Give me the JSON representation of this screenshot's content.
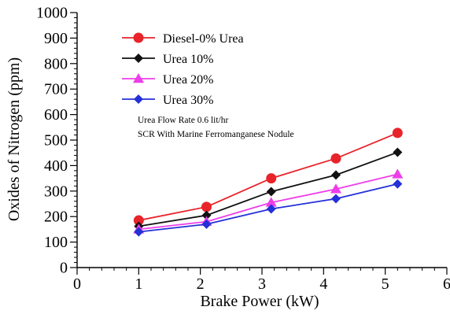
{
  "chart_data": {
    "type": "line",
    "xlabel": "Brake Power (kW)",
    "ylabel": "Oxides of Nitrogen (ppm)",
    "xlim": [
      0,
      6
    ],
    "ylim": [
      0,
      1000
    ],
    "x_ticks": [
      0,
      1,
      2,
      3,
      4,
      5,
      6
    ],
    "y_ticks": [
      0,
      100,
      200,
      300,
      400,
      500,
      600,
      700,
      800,
      900,
      1000
    ],
    "grid": false,
    "legend_position": "top-left",
    "series": [
      {
        "name": "Diesel-0% Urea",
        "color": "#e8232a",
        "marker": "circle",
        "x": [
          1.0,
          2.1,
          3.15,
          4.2,
          5.2
        ],
        "y": [
          185,
          238,
          350,
          428,
          528
        ]
      },
      {
        "name": "Urea 10%",
        "color": "#111111",
        "marker": "diamond",
        "x": [
          1.0,
          2.1,
          3.15,
          4.2,
          5.2
        ],
        "y": [
          162,
          205,
          298,
          363,
          452
        ]
      },
      {
        "name": "Urea 20%",
        "color": "#ee3ee8",
        "marker": "triangle",
        "x": [
          1.0,
          2.1,
          3.15,
          4.2,
          5.2
        ],
        "y": [
          150,
          180,
          255,
          308,
          366
        ]
      },
      {
        "name": "Urea 30%",
        "color": "#2430d8",
        "marker": "diamond",
        "x": [
          1.0,
          2.1,
          3.15,
          4.2,
          5.2
        ],
        "y": [
          140,
          170,
          230,
          270,
          328
        ]
      }
    ],
    "annotations": [
      "Urea Flow Rate 0.6 lit/hr",
      "SCR With Marine Ferromanganese Nodule"
    ]
  }
}
